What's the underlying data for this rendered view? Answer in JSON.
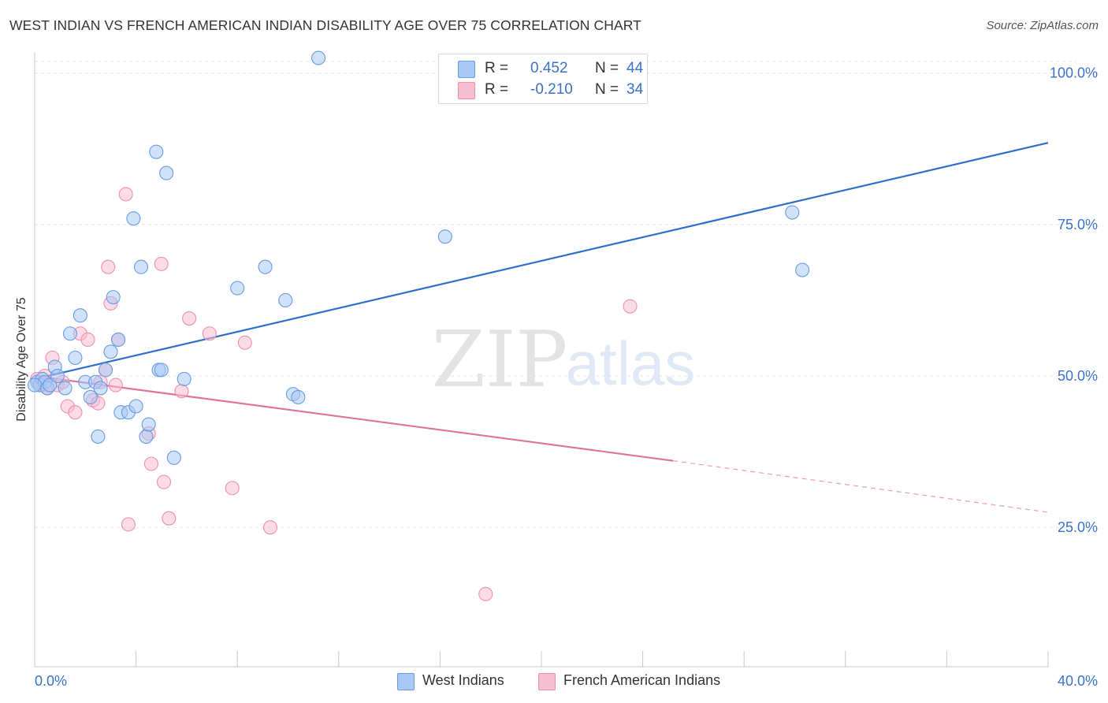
{
  "header": {
    "title": "WEST INDIAN VS FRENCH AMERICAN INDIAN DISABILITY AGE OVER 75 CORRELATION CHART",
    "source": "Source: ZipAtlas.com"
  },
  "watermark": {
    "zip": "ZIP",
    "atlas": "atlas"
  },
  "stats": {
    "rows": [
      {
        "r_label": "R =",
        "r_value": "0.452",
        "n_label": "N =",
        "n_value": "44",
        "color": "#a9c8f5"
      },
      {
        "r_label": "R =",
        "r_value": "-0.210",
        "n_label": "N =",
        "n_value": "34",
        "color": "#f7bdd0"
      }
    ]
  },
  "legend": {
    "items": [
      {
        "label": "West Indians",
        "color": "#a9c8f5"
      },
      {
        "label": "French American Indians",
        "color": "#f7bdd0"
      }
    ]
  },
  "chart_data": {
    "type": "scatter",
    "title": "WEST INDIAN VS FRENCH AMERICAN INDIAN DISABILITY AGE OVER 75 CORRELATION CHART",
    "xlabel": "",
    "ylabel": "Disability Age Over 75",
    "xlim": [
      0,
      40
    ],
    "ylim": [
      2,
      104
    ],
    "x_tick_labels": [
      "0.0%",
      "40.0%"
    ],
    "y_ticks": [
      25,
      50,
      75,
      100
    ],
    "y_tick_labels": [
      "25.0%",
      "50.0%",
      "75.0%",
      "100.0%"
    ],
    "grid": true,
    "legend_position": "bottom-center",
    "series": [
      {
        "name": "West Indians",
        "color": "#6a9be0",
        "fill": "#a9c8f5",
        "line_color": "#2f6fcb",
        "trend": {
          "x": [
            0,
            40
          ],
          "y": [
            49.5,
            88.5
          ]
        },
        "points": [
          [
            0.1,
            49.0
          ],
          [
            0.2,
            48.5
          ],
          [
            0.3,
            49.5
          ],
          [
            0.4,
            49.0
          ],
          [
            0.5,
            48.0
          ],
          [
            0.6,
            48.5
          ],
          [
            0.8,
            51.5
          ],
          [
            0.9,
            50.0
          ],
          [
            1.2,
            48.0
          ],
          [
            1.4,
            57.0
          ],
          [
            1.6,
            53.0
          ],
          [
            1.8,
            60.0
          ],
          [
            2.0,
            49.0
          ],
          [
            2.2,
            46.5
          ],
          [
            2.4,
            49.0
          ],
          [
            2.5,
            40.0
          ],
          [
            2.6,
            48.0
          ],
          [
            2.8,
            51.0
          ],
          [
            3.0,
            54.0
          ],
          [
            3.1,
            63.0
          ],
          [
            3.3,
            56.0
          ],
          [
            3.4,
            44.0
          ],
          [
            3.7,
            44.0
          ],
          [
            4.0,
            45.0
          ],
          [
            3.9,
            76.0
          ],
          [
            4.2,
            68.0
          ],
          [
            4.4,
            40.0
          ],
          [
            4.5,
            42.0
          ],
          [
            4.8,
            87.0
          ],
          [
            4.9,
            51.0
          ],
          [
            5.0,
            51.0
          ],
          [
            5.2,
            83.5
          ],
          [
            5.5,
            36.5
          ],
          [
            5.9,
            49.5
          ],
          [
            8.0,
            64.5
          ],
          [
            9.1,
            68.0
          ],
          [
            9.9,
            62.5
          ],
          [
            10.2,
            47.0
          ],
          [
            10.4,
            46.5
          ],
          [
            11.2,
            102.5
          ],
          [
            16.2,
            73.0
          ],
          [
            29.9,
            77.0
          ],
          [
            30.3,
            67.5
          ],
          [
            0.0,
            48.5
          ]
        ]
      },
      {
        "name": "French American Indians",
        "color": "#ee8fae",
        "fill": "#f7bdd0",
        "line_color": "#e0719a",
        "trend": {
          "x": [
            0,
            25.2
          ],
          "y": [
            50.0,
            36.0
          ]
        },
        "trend_dashed": {
          "x": [
            25.2,
            40
          ],
          "y": [
            36.0,
            27.5
          ]
        },
        "points": [
          [
            0.1,
            49.5
          ],
          [
            0.3,
            48.5
          ],
          [
            0.4,
            50.0
          ],
          [
            0.5,
            48.0
          ],
          [
            0.7,
            53.0
          ],
          [
            0.9,
            48.5
          ],
          [
            1.1,
            49.0
          ],
          [
            1.3,
            45.0
          ],
          [
            1.6,
            44.0
          ],
          [
            1.8,
            57.0
          ],
          [
            2.1,
            56.0
          ],
          [
            2.3,
            46.0
          ],
          [
            2.5,
            45.5
          ],
          [
            2.6,
            49.0
          ],
          [
            2.8,
            51.0
          ],
          [
            2.9,
            68.0
          ],
          [
            3.0,
            62.0
          ],
          [
            3.2,
            48.5
          ],
          [
            3.3,
            56.0
          ],
          [
            3.6,
            80.0
          ],
          [
            3.7,
            25.5
          ],
          [
            4.5,
            40.5
          ],
          [
            4.6,
            35.5
          ],
          [
            5.0,
            68.5
          ],
          [
            5.1,
            32.5
          ],
          [
            5.3,
            26.5
          ],
          [
            5.8,
            47.5
          ],
          [
            6.1,
            59.5
          ],
          [
            6.9,
            57.0
          ],
          [
            7.8,
            31.5
          ],
          [
            8.3,
            55.5
          ],
          [
            9.3,
            25.0
          ],
          [
            17.8,
            14.0
          ],
          [
            23.5,
            61.5
          ]
        ]
      }
    ]
  }
}
